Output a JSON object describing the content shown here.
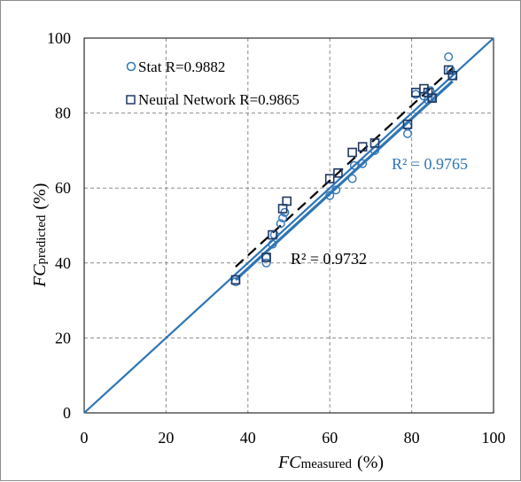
{
  "chart_data": {
    "type": "scatter",
    "xlabel_main": "FC",
    "xlabel_sub": "measured",
    "xlabel_unit": "(%)",
    "ylabel_main": "FC",
    "ylabel_sub": "predicted",
    "ylabel_unit": "(%)",
    "xlim": [
      0,
      100
    ],
    "ylim": [
      0,
      100
    ],
    "xticks": [
      "0",
      "20",
      "40",
      "60",
      "80",
      "100"
    ],
    "yticks": [
      "0",
      "20",
      "40",
      "60",
      "80",
      "100"
    ],
    "grid": true,
    "grid_style": "dashed",
    "legend_placement": "top-left",
    "series": [
      {
        "name": "Stat R=0.9882",
        "marker": "circle",
        "color": "#2e75b6",
        "points": [
          [
            37,
            35
          ],
          [
            44.5,
            40
          ],
          [
            44.5,
            41.5
          ],
          [
            46,
            45
          ],
          [
            46.5,
            47.5
          ],
          [
            48,
            50.5
          ],
          [
            48.5,
            52
          ],
          [
            49,
            53.5
          ],
          [
            60,
            58
          ],
          [
            61.5,
            59.5
          ],
          [
            65.5,
            62.5
          ],
          [
            66,
            66
          ],
          [
            68,
            66.5
          ],
          [
            71,
            70
          ],
          [
            79,
            74.5
          ],
          [
            79,
            76.5
          ],
          [
            81,
            85
          ],
          [
            83,
            84.5
          ],
          [
            84,
            83.5
          ],
          [
            84.5,
            86
          ],
          [
            85,
            84
          ],
          [
            89,
            95
          ],
          [
            89.5,
            91.5
          ],
          [
            90,
            90
          ]
        ]
      },
      {
        "name": "Neural Network R=0.9865",
        "marker": "square",
        "color": "#1f3864",
        "points": [
          [
            37,
            35.5
          ],
          [
            44.5,
            41.5
          ],
          [
            46,
            47.5
          ],
          [
            48.5,
            54.5
          ],
          [
            49.5,
            56.5
          ],
          [
            60,
            62.5
          ],
          [
            62,
            64
          ],
          [
            65.5,
            69.5
          ],
          [
            68,
            71
          ],
          [
            71,
            72
          ],
          [
            79,
            77
          ],
          [
            81,
            85.5
          ],
          [
            83,
            86.5
          ],
          [
            84,
            85.5
          ],
          [
            85,
            84
          ],
          [
            89,
            91.5
          ],
          [
            90,
            90
          ]
        ]
      }
    ],
    "fits": [
      {
        "series": "Stat R=0.9882",
        "x": [
          37,
          90
        ],
        "y": [
          35.5,
          88.5
        ],
        "color": "#2e75b6",
        "style": "solid",
        "label": "R² = 0.9765"
      },
      {
        "series": "Neural Network R=0.9865",
        "x": [
          37,
          90
        ],
        "y": [
          39,
          92
        ],
        "color": "#000000",
        "style": "dashed",
        "label": "R² = 0.9732"
      }
    ],
    "identity_line": {
      "x": [
        0,
        100
      ],
      "y": [
        0,
        100
      ],
      "color": "#2e75b6"
    },
    "annotations": [
      {
        "text": "R² = 0.9765",
        "color": "#2e75b6"
      },
      {
        "text": "R² = 0.9732",
        "color": "#000000"
      }
    ]
  }
}
